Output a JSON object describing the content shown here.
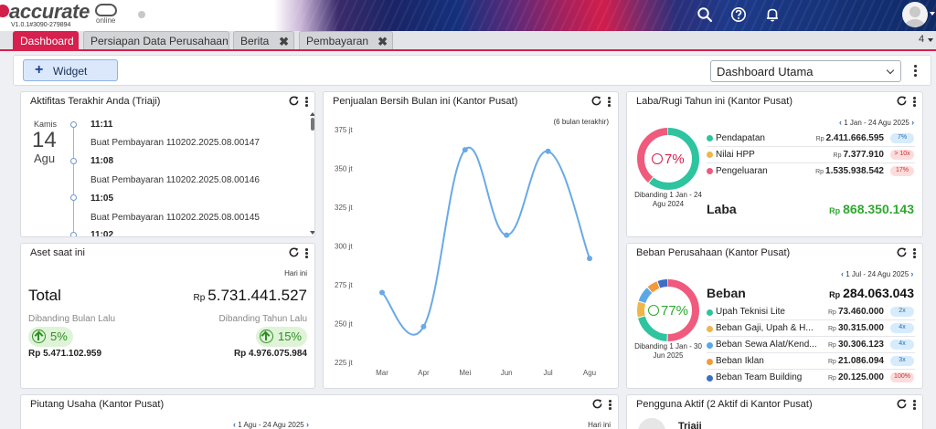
{
  "app": {
    "logo_text": "accurate",
    "logo_sub": "online",
    "version": "V1.0.1#3090-279894"
  },
  "header_icons": [
    "search-icon",
    "help-icon",
    "bell-icon",
    "avatar"
  ],
  "tabs": [
    {
      "label": "Dashboard",
      "active": true
    },
    {
      "label": "Persiapan Data Perusahaan",
      "active": false
    },
    {
      "label": "Berita",
      "active": false,
      "closable": true
    },
    {
      "label": "Pembayaran",
      "active": false,
      "closable": true
    }
  ],
  "tab_count": "4",
  "toolbar": {
    "widget_label": "Widget",
    "dashboard_select": "Dashboard Utama"
  },
  "activity": {
    "title": "Aktifitas Terakhir Anda (Triaji)",
    "day": "Kamis",
    "date": "14",
    "month": "Agu",
    "items": [
      {
        "time": "11:11",
        "desc": "Buat Pembayaran 110202.2025.08.00147"
      },
      {
        "time": "11:08",
        "desc": "Buat Pembayaran 110202.2025.08.00146"
      },
      {
        "time": "11:05",
        "desc": "Buat Pembayaran 110202.2025.08.00145"
      },
      {
        "time": "11:02",
        "desc": ""
      }
    ]
  },
  "aset": {
    "title": "Aset saat ini",
    "period": "Hari ini",
    "total_label": "Total",
    "currency": "Rp",
    "total_value": "5.731.441.527",
    "cmp_month_label": "Dibanding Bulan Lalu",
    "cmp_year_label": "Dibanding Tahun Lalu",
    "cmp_month_pct": "5%",
    "cmp_year_pct": "15%",
    "prev_month_value": "Rp 5.471.102.959",
    "prev_year_value": "Rp 4.976.075.984"
  },
  "sales": {
    "title": "Penjualan Bersih Bulan ini (Kantor Pusat)",
    "subtitle": "(6 bulan terakhir)"
  },
  "chart_data": {
    "type": "line",
    "title": "Penjualan Bersih Bulan ini (Kantor Pusat)",
    "subtitle": "(6 bulan terakhir)",
    "categories": [
      "Mar",
      "Apr",
      "Mei",
      "Jun",
      "Jul",
      "Agu"
    ],
    "values": [
      270,
      248,
      362,
      307,
      361,
      292
    ],
    "y_ticks": [
      "225 jt",
      "250 jt",
      "275 jt",
      "300 jt",
      "325 jt",
      "350 jt",
      "375 jt"
    ],
    "ylim": [
      225,
      375
    ],
    "grid": false,
    "color": "#6aa9e6"
  },
  "laba": {
    "title": "Laba/Rugi Tahun ini (Kantor Pusat)",
    "period": "1 Jan - 24 Agu 2025",
    "center_pct": "7%",
    "caption": "Dibanding 1 Jan - 24 Agu 2024",
    "rows": [
      {
        "label": "Pendapatan",
        "value": "2.411.666.595",
        "badge": "7%",
        "badge_type": "blue",
        "color": "#2ec4a0"
      },
      {
        "label": "Nilai HPP",
        "value": "7.377.910",
        "badge": "> 10x",
        "badge_type": "red",
        "color": "#f0b64a"
      },
      {
        "label": "Pengeluaran",
        "value": "1.535.938.542",
        "badge": "17%",
        "badge_type": "red",
        "color": "#ef5a7d"
      }
    ],
    "currency": "Rp",
    "result_label": "Laba",
    "result_value": "868.350.143",
    "donut": [
      {
        "value": 2411666595,
        "color": "#2ec4a0"
      },
      {
        "value": 7377910,
        "color": "#f0b64a"
      },
      {
        "value": 1535938542,
        "color": "#ef5a7d"
      }
    ]
  },
  "beban": {
    "title": "Beban Perusahaan (Kantor Pusat)",
    "period": "1 Jul - 24 Agu 2025",
    "center_pct": "77%",
    "caption": "Dibanding 1 Jan - 30 Jun 2025",
    "total_label": "Beban",
    "currency": "Rp",
    "total_value": "284.063.043",
    "rows": [
      {
        "label": "Upah Teknisi Lite",
        "value": "73.460.000",
        "badge": "2x",
        "color": "#2ec4a0"
      },
      {
        "label": "Beban Gaji, Upah & H...",
        "value": "30.315.000",
        "badge": "4x",
        "color": "#f0b64a"
      },
      {
        "label": "Beban Sewa Alat/Kend...",
        "value": "30.306.123",
        "badge": "4x",
        "color": "#5aa9e6"
      },
      {
        "label": "Beban Iklan",
        "value": "21.086.094",
        "badge": "3x",
        "color": "#f39a3c"
      },
      {
        "label": "Beban Team Building",
        "value": "20.125.000",
        "badge": "100%",
        "color": "#3d6fc4"
      }
    ],
    "donut": [
      {
        "value": 180,
        "color": "#ef5a7d"
      },
      {
        "value": 73.46,
        "color": "#2ec4a0"
      },
      {
        "value": 30.3,
        "color": "#f0b64a"
      },
      {
        "value": 30.3,
        "color": "#5aa9e6"
      },
      {
        "value": 21.1,
        "color": "#f39a3c"
      },
      {
        "value": 20.1,
        "color": "#3d6fc4"
      }
    ]
  },
  "piutang": {
    "title": "Piutang Usaha (Kantor Pusat)",
    "period": "1 Agu - 24 Agu 2025",
    "period_right": "Hari ini"
  },
  "pengguna": {
    "title": "Pengguna Aktif (2 Aktif di Kantor Pusat)",
    "first_user": "Triaji"
  }
}
